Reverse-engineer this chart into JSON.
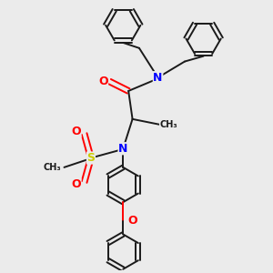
{
  "bg_color": "#ebebeb",
  "bond_color": "#1a1a1a",
  "N_color": "#0000ff",
  "O_color": "#ff0000",
  "S_color": "#cccc00",
  "C_color": "#1a1a1a",
  "line_width": 1.4,
  "figsize": [
    3.0,
    3.0
  ],
  "dpi": 100,
  "xlim": [
    0,
    10
  ],
  "ylim": [
    0,
    10
  ]
}
